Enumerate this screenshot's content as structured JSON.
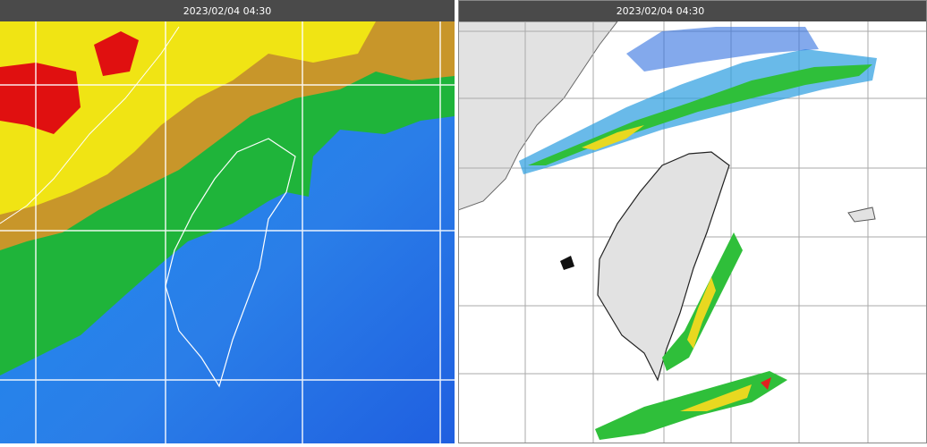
{
  "panels": [
    {
      "timestamp": "2023/02/04 04:30"
    },
    {
      "timestamp": "2023/02/04 04:30"
    }
  ]
}
